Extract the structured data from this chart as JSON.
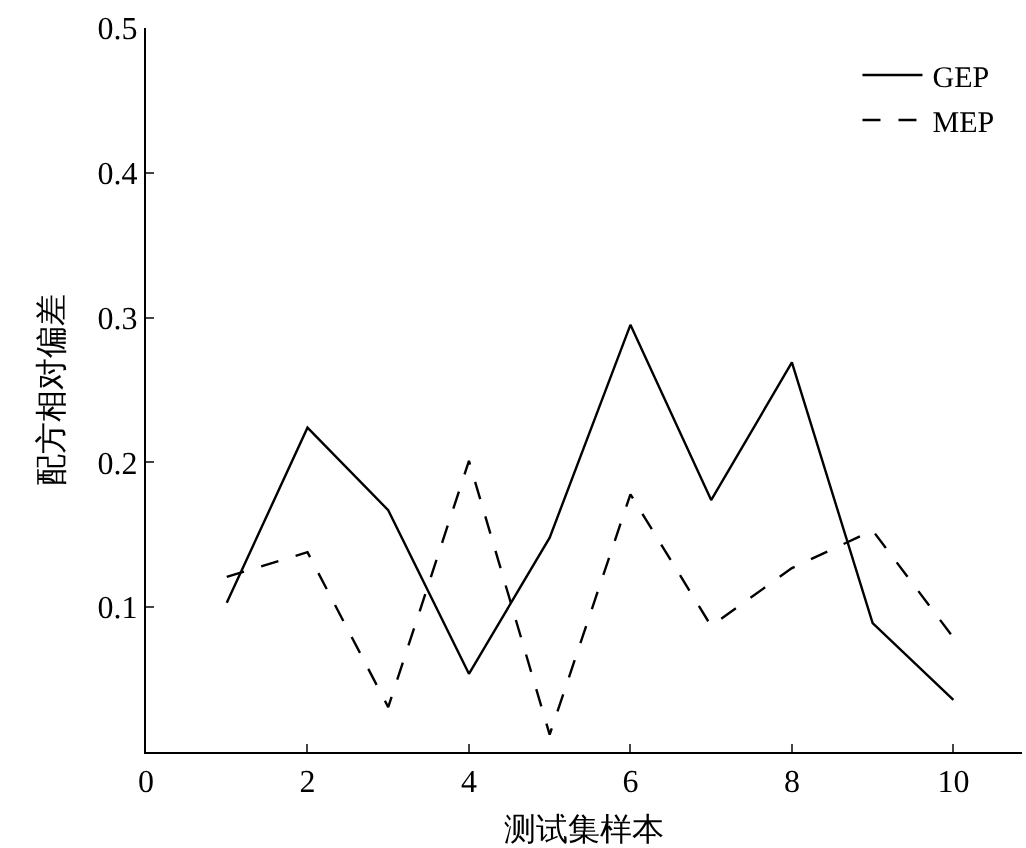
{
  "chart_data": {
    "type": "line",
    "xlabel": "测试集样本",
    "ylabel": "配方相对偏差",
    "x": [
      1,
      2,
      3,
      4,
      5,
      6,
      7,
      8,
      9,
      10
    ],
    "series": [
      {
        "name": "GEP",
        "color": "#000000",
        "line_style": "solid",
        "values": [
          0.103,
          0.224,
          0.167,
          0.054,
          0.148,
          0.295,
          0.174,
          0.269,
          0.089,
          0.036
        ]
      },
      {
        "name": "MEP",
        "color": "#000000",
        "line_style": "dashed",
        "values": [
          0.121,
          0.138,
          0.031,
          0.201,
          0.012,
          0.178,
          0.087,
          0.127,
          0.153,
          0.079
        ]
      }
    ],
    "xlim": [
      0,
      10.85
    ],
    "xticks": [
      0,
      2,
      4,
      6,
      8,
      10
    ],
    "ylim": [
      0,
      0.5
    ],
    "yticks": [
      0.1,
      0.2,
      0.3,
      0.4,
      0.5
    ],
    "grid": false,
    "legend": "top right",
    "marker": "none"
  }
}
